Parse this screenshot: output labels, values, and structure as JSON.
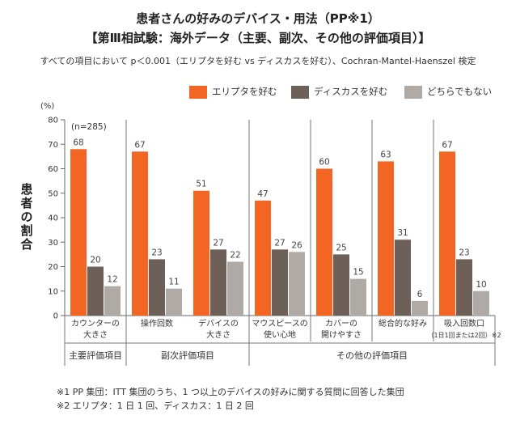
{
  "title_line1": "患者さんの好みのデバイス・用法（PP※1）",
  "title_line2": "【第Ⅲ相試験：海外データ（主要、副次、その他の評価項目）】",
  "subtitle": "すべての項目において p＜0.001（エリプタを好む vs ディスカスを好む）、Cochran-Mantel-Haenszel 検定",
  "y_unit": "(%)",
  "y_axis_title": "患者の割合",
  "n_label": "(n=285)",
  "colors": {
    "ellipta": "#f26522",
    "diskus": "#6d6059",
    "neither": "#b0aaa6"
  },
  "chart_data": {
    "type": "bar",
    "ylabel": "患者の割合",
    "ylim": [
      0,
      80
    ],
    "yticks": [
      0,
      10,
      20,
      30,
      40,
      50,
      60,
      70,
      80
    ],
    "legend": [
      "エリプタを好む",
      "ディスカスを好む",
      "どちらでもない"
    ],
    "categories": [
      {
        "lines": [
          "カウンターの",
          "大きさ"
        ]
      },
      {
        "lines": [
          "操作回数"
        ]
      },
      {
        "lines": [
          "デバイスの",
          "大きさ"
        ]
      },
      {
        "lines": [
          "マウスピースの",
          "使い心地"
        ]
      },
      {
        "lines": [
          "カバーの",
          "開けやすさ"
        ]
      },
      {
        "lines": [
          "総合的な好み"
        ]
      },
      {
        "lines": [
          "吸入回数口",
          "（1日1回または2回）※2"
        ]
      }
    ],
    "series": [
      {
        "name": "エリプタを好む",
        "values": [
          68,
          67,
          51,
          47,
          60,
          63,
          67
        ]
      },
      {
        "name": "ディスカスを好む",
        "values": [
          20,
          23,
          27,
          27,
          25,
          31,
          23
        ]
      },
      {
        "name": "どちらでもない",
        "values": [
          12,
          11,
          22,
          26,
          15,
          6,
          10
        ]
      }
    ],
    "groups": [
      {
        "label": "主要評価項目",
        "from": 0,
        "to": 0
      },
      {
        "label": "副次評価項目",
        "from": 1,
        "to": 2
      },
      {
        "label": "その他の評価項目",
        "from": 3,
        "to": 6
      }
    ]
  },
  "footnotes": [
    "※1 PP 集団：ITT 集団のうち、1 つ以上のデバイスの好みに関する質問に回答した集団",
    "※2 エリプタ：1 日 1 回、ディスカス：1 日 2 回"
  ]
}
